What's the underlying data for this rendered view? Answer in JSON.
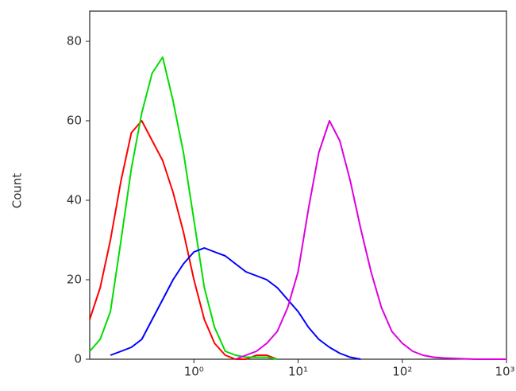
{
  "chart_data": {
    "type": "line",
    "ylabel": "Count",
    "xscale": "log",
    "xlim": [
      0.1,
      1000
    ],
    "ylim": [
      0,
      87.6
    ],
    "xticks": [
      {
        "value": 1,
        "label": "10⁰"
      },
      {
        "value": 10,
        "label": "10¹"
      },
      {
        "value": 100,
        "label": "10²"
      },
      {
        "value": 1000,
        "label": "10³"
      }
    ],
    "yticks": [
      0,
      20,
      40,
      60,
      80
    ],
    "x": [
      0.1,
      0.126,
      0.158,
      0.2,
      0.251,
      0.316,
      0.398,
      0.501,
      0.631,
      0.794,
      1,
      1.26,
      1.58,
      2,
      2.51,
      3.16,
      3.98,
      5.01,
      6.31,
      7.94,
      10,
      12.6,
      15.8,
      20,
      25.1,
      31.6,
      39.8,
      50.1,
      63.1,
      79.4,
      100,
      126,
      158,
      200,
      251,
      316,
      398,
      501,
      631,
      794,
      1000
    ],
    "series": [
      {
        "color": "#ff0000",
        "values": [
          10,
          18,
          30,
          45,
          57,
          60,
          55,
          50,
          42,
          32,
          20,
          10,
          4,
          1,
          0,
          0,
          1,
          1,
          0,
          null,
          null,
          null,
          null,
          null,
          null,
          null,
          null,
          null,
          null,
          null,
          null,
          null,
          null,
          null,
          null,
          null,
          null,
          null,
          null,
          null,
          null
        ]
      },
      {
        "color": "#00dd00",
        "values": [
          2,
          5,
          12,
          30,
          48,
          62,
          72,
          76,
          65,
          52,
          35,
          18,
          8,
          2,
          1,
          0.5,
          0.5,
          0.5,
          0,
          null,
          null,
          null,
          null,
          null,
          null,
          null,
          null,
          null,
          null,
          null,
          null,
          null,
          null,
          null,
          null,
          null,
          null,
          null,
          null,
          null,
          null
        ]
      },
      {
        "color": "#0000ff",
        "values": [
          null,
          null,
          1,
          2,
          3,
          5,
          10,
          15,
          20,
          24,
          27,
          28,
          27,
          26,
          24,
          22,
          21,
          20,
          18,
          15,
          12,
          8,
          5,
          3,
          1.5,
          0.5,
          0,
          null,
          null,
          null,
          null,
          null,
          null,
          null,
          null,
          null,
          null,
          null,
          null,
          null,
          null
        ]
      },
      {
        "color": "#dd00dd",
        "values": [
          null,
          null,
          null,
          null,
          null,
          null,
          null,
          null,
          null,
          null,
          null,
          null,
          null,
          null,
          0,
          1,
          2,
          4,
          7,
          13,
          22,
          38,
          52,
          60,
          55,
          45,
          33,
          22,
          13,
          7,
          4,
          2,
          1,
          0.5,
          0.3,
          0.2,
          0.1,
          0,
          0,
          0,
          0
        ]
      }
    ]
  }
}
